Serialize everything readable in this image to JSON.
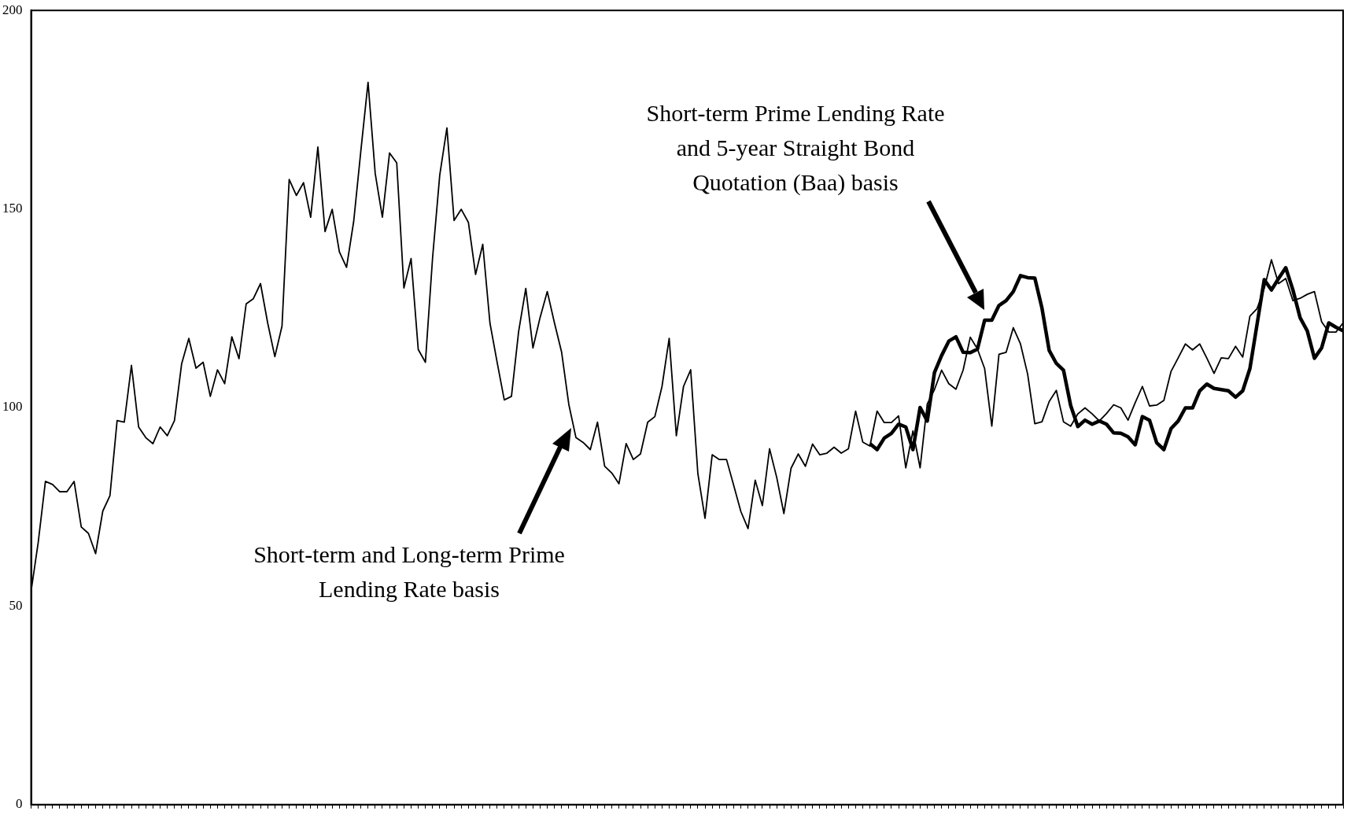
{
  "chart_data": {
    "type": "line",
    "categories": [
      null,
      null,
      null,
      null,
      null,
      null,
      null,
      null,
      null,
      null,
      null,
      null,
      null,
      null,
      null,
      null,
      null,
      null,
      null,
      null,
      null,
      null,
      null,
      null,
      null,
      null,
      null,
      null,
      null,
      null,
      null,
      null,
      null,
      null,
      null,
      null,
      null,
      null,
      null,
      null,
      null,
      null,
      null,
      null,
      null,
      null,
      null,
      null,
      null,
      null,
      null,
      null,
      null,
      null,
      null,
      null,
      null,
      null,
      null,
      null,
      null,
      null,
      null,
      null,
      null,
      null,
      null,
      null,
      null,
      null,
      null,
      null,
      null,
      null,
      null,
      null,
      null,
      null,
      null,
      null,
      null,
      null,
      null,
      null,
      null,
      null,
      null,
      null,
      null,
      null,
      null,
      null,
      null,
      null,
      null,
      null,
      null,
      null,
      null,
      null,
      null,
      null,
      null,
      null,
      null,
      null,
      null,
      null,
      null,
      null,
      null,
      null,
      null,
      null,
      null,
      null,
      null,
      null,
      null,
      null,
      null,
      null,
      null,
      null,
      null,
      null,
      null,
      null,
      null,
      null,
      null,
      null,
      null,
      null,
      null,
      null,
      null,
      null,
      null,
      null,
      null,
      null,
      null,
      null,
      null,
      null,
      null,
      null,
      null,
      null,
      null,
      null,
      null,
      null,
      null,
      null,
      null,
      null,
      null,
      null,
      null,
      null,
      null,
      null,
      null,
      null,
      null,
      null,
      null,
      null,
      null,
      null,
      null,
      null,
      null,
      null,
      null,
      null,
      null,
      null,
      null,
      null,
      null,
      null
    ],
    "series": [
      {
        "color": "#000000",
        "values": [
          53.7,
          66.1,
          81.4,
          80.6,
          78.8,
          78.8,
          81.4,
          69.9,
          68.3,
          63.2,
          73.9,
          77.8,
          96.7,
          96.3,
          110.6,
          95.1,
          92.4,
          90.9,
          95.1,
          92.9,
          96.7,
          111.0,
          117.4,
          109.9,
          111.4,
          102.8,
          109.5,
          106.0,
          117.8,
          112.3,
          126.1,
          127.4,
          131.2,
          121.3,
          112.8,
          120.5,
          157.4,
          153.4,
          156.6,
          147.9,
          165.6,
          144.3,
          149.9,
          139.2,
          135.3,
          146.9,
          164.7,
          181.9,
          158.9,
          147.9,
          164.1,
          161.6,
          130.1,
          137.5,
          114.6,
          111.4,
          137.7,
          158.5,
          170.4,
          147.1,
          149.9,
          146.6,
          133.5,
          141.1,
          121.3,
          111.4,
          101.9,
          102.8,
          119.1,
          130.0,
          115.0,
          122.7,
          129.2,
          121.3,
          113.9,
          100.8,
          92.4,
          91.2,
          89.4,
          96.3,
          85.2,
          83.5,
          80.8,
          90.9,
          86.9,
          88.3,
          96.3,
          97.7,
          105.3,
          117.4,
          92.9,
          105.3,
          109.5,
          83.4,
          72.1,
          88.1,
          86.9,
          86.9,
          80.4,
          73.8,
          69.5,
          81.7,
          75.3,
          89.6,
          82.4,
          73.3,
          84.7,
          88.3,
          85.2,
          90.8,
          88.1,
          88.5,
          90.0,
          88.5,
          89.6,
          99.1,
          91.3,
          90.3,
          99.1,
          96.2,
          96.2,
          97.9,
          84.8,
          94.1,
          84.8,
          100.9,
          104.5,
          109.4,
          106.0,
          104.6,
          109.4,
          117.7,
          114.7,
          109.8,
          95.3,
          113.4,
          113.9,
          120.1,
          116.0,
          108.4,
          95.9,
          96.4,
          101.5,
          104.3,
          96.4,
          95.3,
          98.4,
          99.9,
          98.4,
          96.6,
          98.5,
          100.7,
          99.9,
          96.8,
          101.2,
          105.3,
          100.4,
          100.6,
          101.8,
          109.1,
          112.5,
          116.0,
          114.5,
          116.0,
          112.4,
          108.6,
          112.5,
          112.3,
          115.4,
          112.7,
          123.0,
          124.9,
          130.0,
          137.2,
          131.2,
          132.5,
          126.9,
          127.5,
          128.5,
          129.2,
          121.6,
          119.0,
          119.0,
          121.3
        ]
      },
      {
        "color": "#000000",
        "values": [
          null,
          null,
          null,
          null,
          null,
          null,
          null,
          null,
          null,
          null,
          null,
          null,
          null,
          null,
          null,
          null,
          null,
          null,
          null,
          null,
          null,
          null,
          null,
          null,
          null,
          null,
          null,
          null,
          null,
          null,
          null,
          null,
          null,
          null,
          null,
          null,
          null,
          null,
          null,
          null,
          null,
          null,
          null,
          null,
          null,
          null,
          null,
          null,
          null,
          null,
          null,
          null,
          null,
          null,
          null,
          null,
          null,
          null,
          null,
          null,
          null,
          null,
          null,
          null,
          null,
          null,
          null,
          null,
          null,
          null,
          null,
          null,
          null,
          null,
          null,
          null,
          null,
          null,
          null,
          null,
          null,
          null,
          null,
          null,
          null,
          null,
          null,
          null,
          null,
          null,
          null,
          null,
          null,
          null,
          null,
          null,
          null,
          null,
          null,
          null,
          null,
          null,
          null,
          null,
          null,
          null,
          null,
          null,
          null,
          null,
          null,
          null,
          null,
          null,
          null,
          null,
          null,
          90.9,
          89.4,
          92.3,
          93.5,
          95.8,
          95.1,
          89.4,
          100.0,
          96.6,
          108.8,
          113.1,
          116.7,
          117.8,
          113.9,
          113.8,
          114.7,
          122.0,
          122.0,
          125.7,
          126.9,
          129.2,
          133.2,
          132.7,
          132.6,
          125.0,
          114.4,
          111.1,
          109.4,
          100.5,
          95.2,
          96.8,
          95.8,
          96.6,
          95.8,
          93.6,
          93.5,
          92.6,
          90.6,
          97.7,
          96.8,
          91.1,
          89.4,
          94.7,
          96.6,
          99.9,
          99.9,
          104.2,
          105.9,
          104.8,
          104.5,
          104.2,
          102.6,
          104.2,
          109.8,
          121.0,
          132.2,
          129.6,
          132.5,
          135.2,
          129.6,
          122.6,
          119.3,
          112.4,
          115.0,
          121.3,
          120.2,
          119.3
        ]
      }
    ],
    "ylim": [
      0,
      200
    ],
    "yticks": [
      0,
      50,
      100,
      150,
      200
    ],
    "annotations": [
      "Short-term and Long-term Prime Lending Rate basis",
      "Short-term Prime Lending Rate and 5-year Straight Bond Quotation (Baa) basis"
    ]
  }
}
